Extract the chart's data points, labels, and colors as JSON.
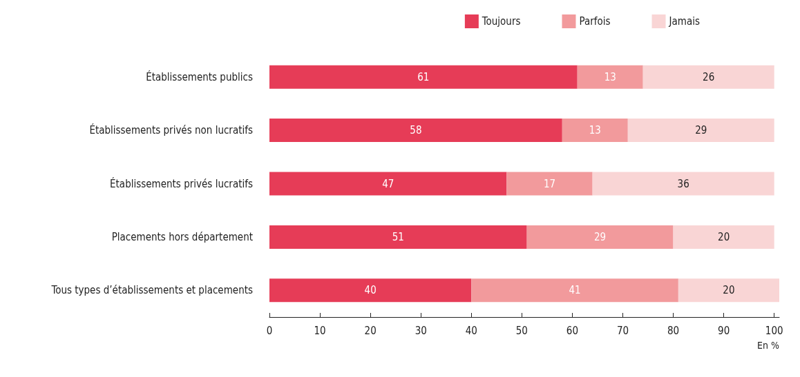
{
  "chart_data": {
    "type": "bar",
    "orientation": "horizontal",
    "stacked": true,
    "data_labels": true,
    "xlabel": "En %",
    "legend": "top right",
    "grid": false,
    "categories": [
      "Établissements publics",
      "Établissements privés non lucratifs",
      "Établissements privés lucratifs",
      "Placements hors département",
      "Tous types d’établissements et placements"
    ],
    "series": [
      {
        "name": "Toujours",
        "color": "#e63c57",
        "values": [
          61,
          58,
          47,
          51,
          40
        ]
      },
      {
        "name": "Parfois",
        "color": "#f29a9c",
        "values": [
          13,
          13,
          17,
          29,
          41
        ]
      },
      {
        "name": "Jamais",
        "color": "#f9d5d5",
        "values": [
          26,
          29,
          36,
          20,
          20
        ]
      }
    ],
    "xlim": [
      0,
      101
    ],
    "xticks": [
      0,
      10,
      20,
      30,
      40,
      50,
      60,
      70,
      80,
      90,
      100
    ]
  }
}
